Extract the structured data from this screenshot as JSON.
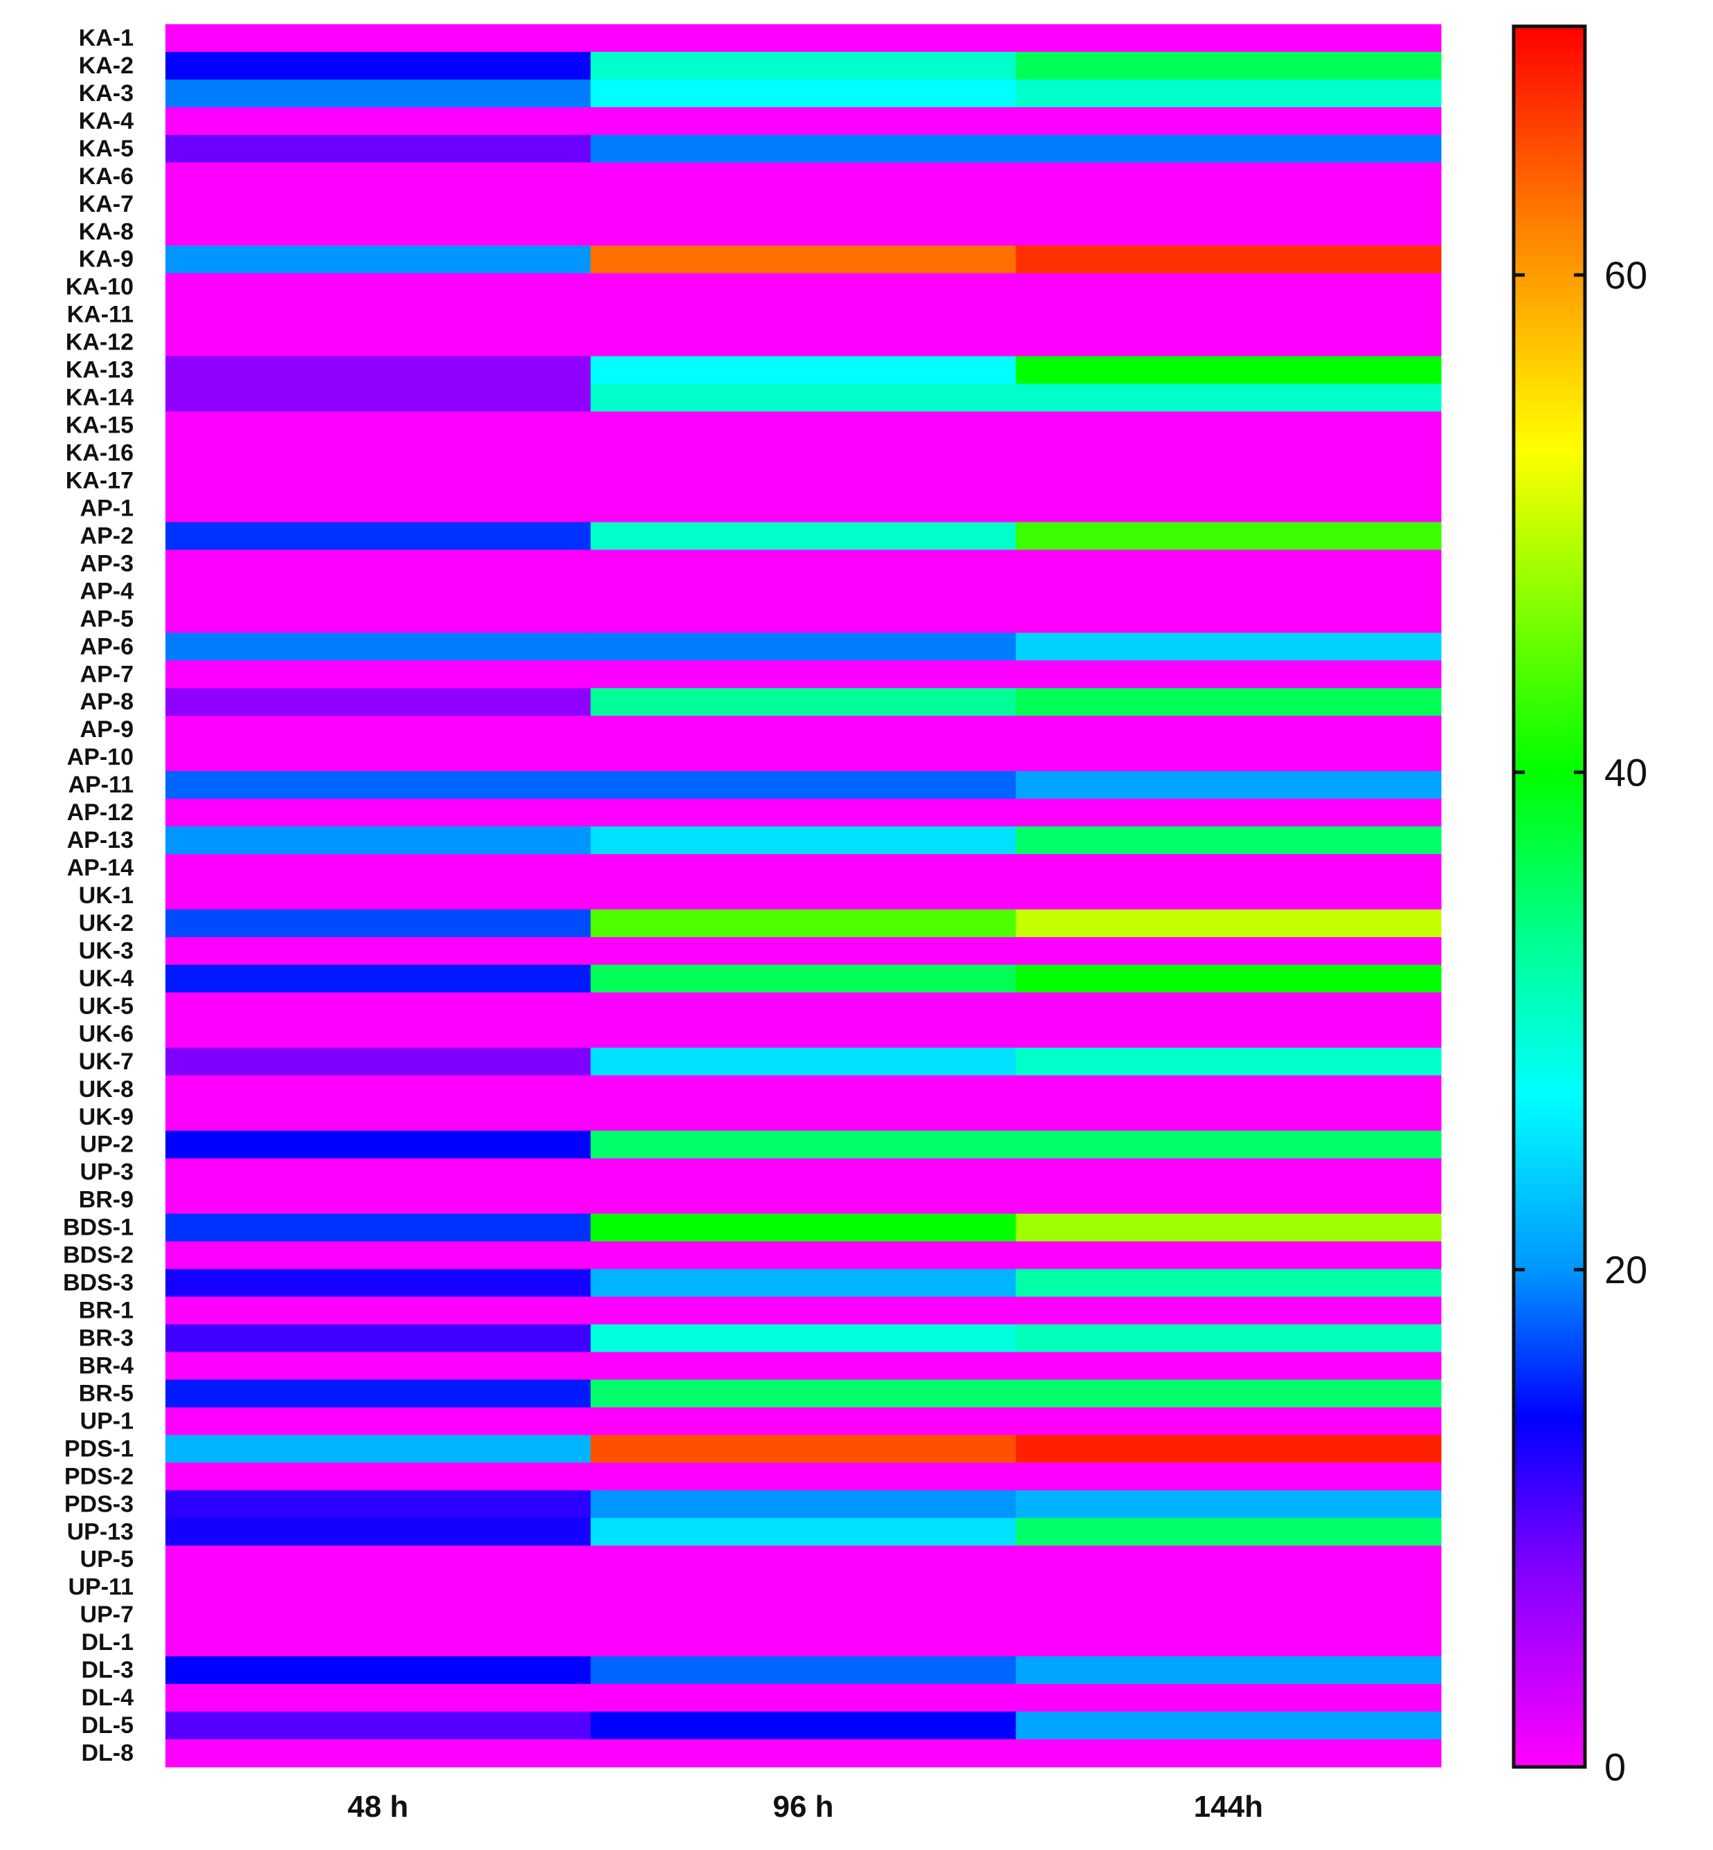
{
  "chart_data": {
    "type": "heatmap",
    "title": "",
    "xlabel": "",
    "ylabel": "",
    "columns": [
      "48 h",
      "96 h",
      "144h"
    ],
    "rows": [
      "KA-1",
      "KA-2",
      "KA-3",
      "KA-4",
      "KA-5",
      "KA-6",
      "KA-7",
      "KA-8",
      "KA-9",
      "KA-10",
      "KA-11",
      "KA-12",
      "KA-13",
      "KA-14",
      "KA-15",
      "KA-16",
      "KA-17",
      "AP-1",
      "AP-2",
      "AP-3",
      "AP-4",
      "AP-5",
      "AP-6",
      "AP-7",
      "AP-8",
      "AP-9",
      "AP-10",
      "AP-11",
      "AP-12",
      "AP-13",
      "AP-14",
      "UK-1",
      "UK-2",
      "UK-3",
      "UK-4",
      "UK-5",
      "UK-6",
      "UK-7",
      "UK-8",
      "UK-9",
      "UP-2",
      "UP-3",
      "BR-9",
      "BDS-1",
      "BDS-2",
      "BDS-3",
      "BR-1",
      "BR-3",
      "BR-4",
      "BR-5",
      "UP-1",
      "PDS-1",
      "PDS-2",
      "PDS-3",
      "UP-13",
      "UP-5",
      "UP-11",
      "UP-7",
      "DL-1",
      "DL-3",
      "DL-4",
      "DL-5",
      "DL-8"
    ],
    "values": [
      [
        0,
        0,
        0
      ],
      [
        14,
        30,
        36
      ],
      [
        19,
        27,
        30
      ],
      [
        0,
        0,
        0
      ],
      [
        9,
        19,
        19
      ],
      [
        0,
        0,
        0
      ],
      [
        0,
        0,
        0
      ],
      [
        0,
        0,
        0
      ],
      [
        20,
        63,
        67
      ],
      [
        0,
        0,
        0
      ],
      [
        0,
        0,
        0
      ],
      [
        0,
        0,
        0
      ],
      [
        7,
        27,
        40
      ],
      [
        7,
        30,
        30
      ],
      [
        0,
        0,
        0
      ],
      [
        0,
        0,
        0
      ],
      [
        0,
        0,
        0
      ],
      [
        0,
        0,
        0
      ],
      [
        16,
        30,
        43
      ],
      [
        0,
        0,
        0
      ],
      [
        0,
        0,
        0
      ],
      [
        0,
        0,
        0
      ],
      [
        19,
        19,
        24
      ],
      [
        0,
        0,
        0
      ],
      [
        7,
        33,
        36
      ],
      [
        0,
        0,
        0
      ],
      [
        0,
        0,
        0
      ],
      [
        18,
        18,
        21
      ],
      [
        0,
        0,
        0
      ],
      [
        20,
        25,
        35
      ],
      [
        0,
        0,
        0
      ],
      [
        0,
        0,
        0
      ],
      [
        17,
        44,
        50
      ],
      [
        0,
        0,
        0
      ],
      [
        15,
        36,
        40
      ],
      [
        0,
        0,
        0
      ],
      [
        0,
        0,
        0
      ],
      [
        8,
        25,
        30
      ],
      [
        0,
        0,
        0
      ],
      [
        0,
        0,
        0
      ],
      [
        14,
        35,
        35
      ],
      [
        0,
        0,
        0
      ],
      [
        0,
        0,
        0
      ],
      [
        16,
        40,
        48
      ],
      [
        0,
        0,
        0
      ],
      [
        13,
        22,
        32
      ],
      [
        0,
        0,
        0
      ],
      [
        11,
        29,
        31
      ],
      [
        0,
        0,
        0
      ],
      [
        15,
        35,
        35
      ],
      [
        0,
        0,
        0
      ],
      [
        22,
        65,
        68
      ],
      [
        0,
        0,
        0
      ],
      [
        12,
        20,
        22
      ],
      [
        13,
        25,
        35
      ],
      [
        0,
        0,
        0
      ],
      [
        0,
        0,
        0
      ],
      [
        0,
        0,
        0
      ],
      [
        0,
        0,
        0
      ],
      [
        14,
        18,
        21
      ],
      [
        0,
        0,
        0
      ],
      [
        10,
        14,
        21
      ],
      [
        0,
        0,
        0
      ]
    ],
    "colorbar": {
      "range": [
        0,
        70
      ],
      "ticks": [
        0,
        20,
        40,
        60
      ],
      "stops": [
        {
          "v": 0,
          "color": "#ff00ff"
        },
        {
          "v": 8,
          "color": "#8000ff"
        },
        {
          "v": 14,
          "color": "#0000ff"
        },
        {
          "v": 20,
          "color": "#0096ff"
        },
        {
          "v": 27,
          "color": "#00ffff"
        },
        {
          "v": 33,
          "color": "#00ff96"
        },
        {
          "v": 40,
          "color": "#00ff00"
        },
        {
          "v": 53,
          "color": "#ffff00"
        },
        {
          "v": 62,
          "color": "#ff8000"
        },
        {
          "v": 70,
          "color": "#ff0000"
        }
      ],
      "placement": "right"
    }
  }
}
